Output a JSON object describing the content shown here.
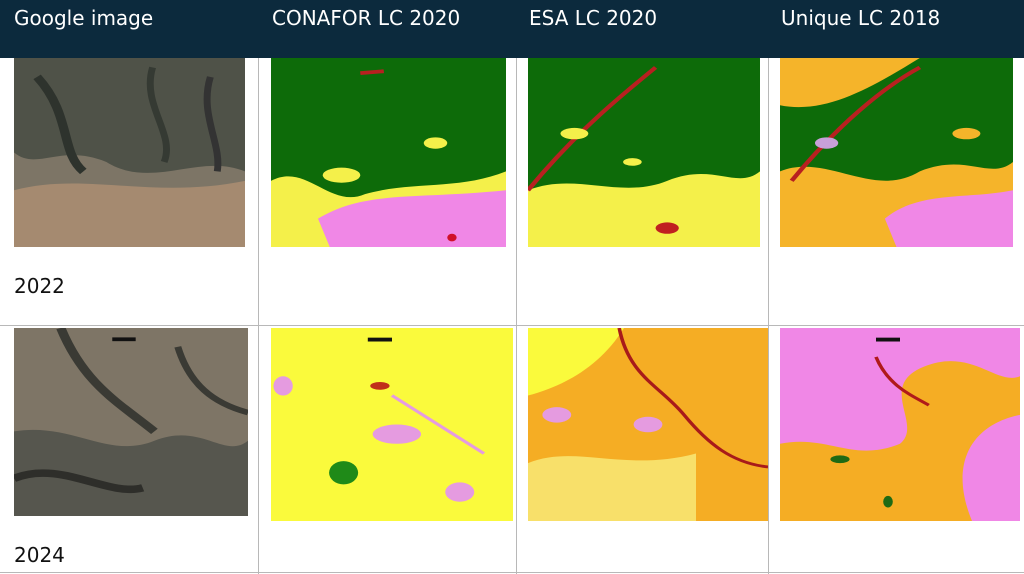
{
  "table": {
    "header": [
      "Google image",
      "CONAFOR LC 2020",
      "ESA LC 2020",
      "Unique LC 2018"
    ],
    "rows": [
      {
        "year": "2022"
      },
      {
        "year": "2024"
      }
    ]
  }
}
